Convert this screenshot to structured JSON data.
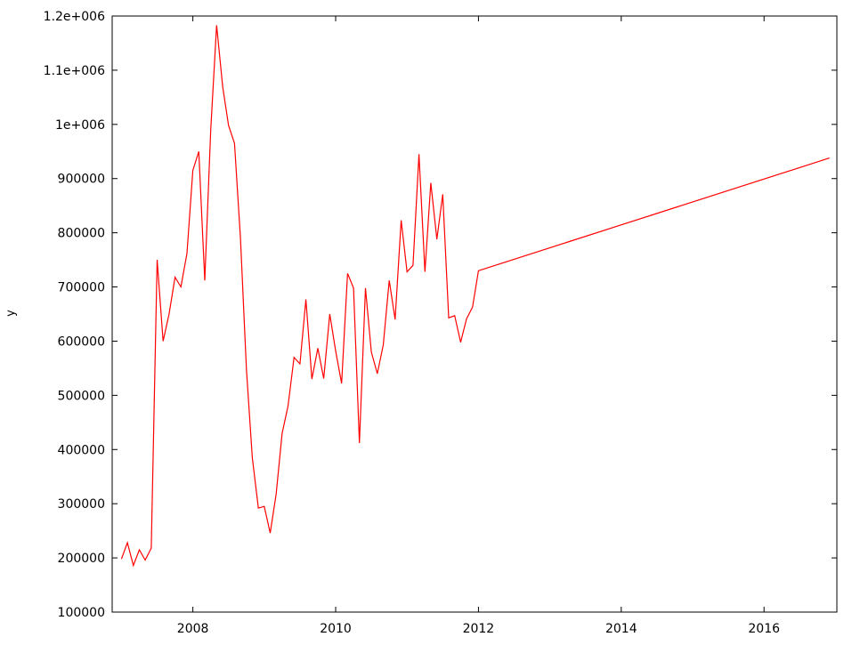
{
  "chart_data": {
    "type": "line",
    "title": "",
    "xlabel": "",
    "ylabel": "y",
    "xlim": [
      2006.87,
      2017.02
    ],
    "ylim": [
      100000,
      1200000
    ],
    "x_ticks": [
      2008,
      2010,
      2012,
      2014,
      2016
    ],
    "y_ticks": [
      100000,
      200000,
      300000,
      400000,
      500000,
      600000,
      700000,
      800000,
      900000,
      1000000,
      1100000,
      1200000
    ],
    "y_tick_labels": [
      "100000",
      "200000",
      "300000",
      "400000",
      "500000",
      "600000",
      "700000",
      "800000",
      "900000",
      "1e+006",
      "1.1e+006",
      "1.2e+006"
    ],
    "grid": false,
    "series": [
      {
        "color": "#ff0000",
        "x": [
          2007.0,
          2007.083,
          2007.167,
          2007.25,
          2007.333,
          2007.417,
          2007.5,
          2007.583,
          2007.667,
          2007.75,
          2007.833,
          2007.917,
          2008.0,
          2008.083,
          2008.167,
          2008.25,
          2008.333,
          2008.417,
          2008.5,
          2008.583,
          2008.667,
          2008.75,
          2008.833,
          2008.917,
          2009.0,
          2009.083,
          2009.167,
          2009.25,
          2009.333,
          2009.417,
          2009.5,
          2009.583,
          2009.667,
          2009.75,
          2009.833,
          2009.917,
          2010.0,
          2010.083,
          2010.167,
          2010.25,
          2010.333,
          2010.417,
          2010.5,
          2010.583,
          2010.667,
          2010.75,
          2010.833,
          2010.917,
          2011.0,
          2011.083,
          2011.167,
          2011.25,
          2011.333,
          2011.417,
          2011.5,
          2011.583,
          2011.667,
          2011.75,
          2011.833,
          2011.917,
          2012.0,
          2016.917
        ],
        "values": [
          198000,
          228000,
          186000,
          215000,
          196000,
          218000,
          750000,
          600000,
          650000,
          718000,
          700000,
          762000,
          915000,
          950000,
          712000,
          990000,
          1183000,
          1070000,
          998000,
          965000,
          790000,
          548000,
          385000,
          292000,
          295000,
          246000,
          318000,
          430000,
          480000,
          570000,
          558000,
          677000,
          530000,
          587000,
          531000,
          650000,
          582000,
          522000,
          725000,
          698000,
          412000,
          698000,
          580000,
          540000,
          593000,
          712000,
          640000,
          823000,
          728000,
          740000,
          945000,
          728000,
          892000,
          788000,
          871000,
          643000,
          647000,
          598000,
          641000,
          663000,
          730000,
          938000
        ]
      }
    ]
  }
}
